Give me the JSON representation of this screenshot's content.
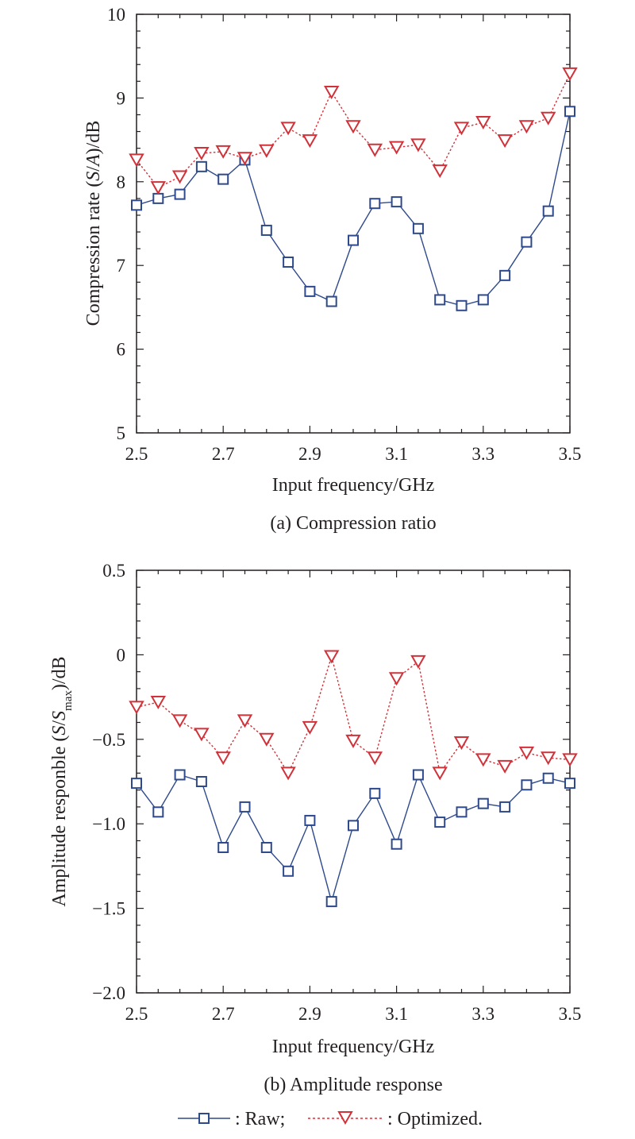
{
  "figure": {
    "legend": {
      "raw_label": ": Raw;",
      "optimized_label": ": Optimized."
    }
  },
  "colors": {
    "raw": "#2e4a8c",
    "optimized": "#d0323a",
    "axis": "#231f20"
  },
  "chart_data": [
    {
      "type": "line",
      "caption": "(a) Compression ratio",
      "xlabel": "Input frequency/GHz",
      "ylabel": "Compression rate (S/A)/dB",
      "xlim": [
        2.5,
        3.5
      ],
      "ylim": [
        5,
        10
      ],
      "xticks": [
        "2.5",
        "2.7",
        "2.9",
        "3.1",
        "3.3",
        "3.5"
      ],
      "yticks": [
        "5",
        "6",
        "7",
        "8",
        "9",
        "10"
      ],
      "grid": false,
      "x": [
        2.5,
        2.55,
        2.6,
        2.65,
        2.7,
        2.75,
        2.8,
        2.85,
        2.9,
        2.95,
        3.0,
        3.05,
        3.1,
        3.15,
        3.2,
        3.25,
        3.3,
        3.35,
        3.4,
        3.45,
        3.5
      ],
      "series": [
        {
          "name": "Raw",
          "marker": "square",
          "values": [
            7.72,
            7.8,
            7.85,
            8.18,
            8.03,
            8.26,
            7.42,
            7.04,
            6.69,
            6.57,
            7.3,
            7.74,
            7.76,
            7.44,
            6.59,
            6.52,
            6.59,
            6.88,
            7.28,
            7.65,
            8.84
          ]
        },
        {
          "name": "Optimized",
          "marker": "triangle-down",
          "values": [
            8.26,
            7.93,
            8.06,
            8.34,
            8.36,
            8.28,
            8.37,
            8.64,
            8.49,
            9.07,
            8.66,
            8.38,
            8.41,
            8.44,
            8.13,
            8.64,
            8.71,
            8.49,
            8.66,
            8.76,
            9.29
          ]
        }
      ]
    },
    {
      "type": "line",
      "caption": "(b) Amplitude response",
      "xlabel": "Input frequency/GHz",
      "ylabel_prefix": "Amplitude responble (",
      "ylabel_s1": "S",
      "ylabel_slash": "/",
      "ylabel_s2": "S",
      "ylabel_sub": "max",
      "ylabel_suffix": ")/dB",
      "xlim": [
        2.5,
        3.5
      ],
      "ylim": [
        -2.0,
        0.5
      ],
      "xticks": [
        "2.5",
        "2.7",
        "2.9",
        "3.1",
        "3.3",
        "3.5"
      ],
      "yticks": [
        "−2.0",
        "−1.5",
        "−1.0",
        "−0.5",
        "0",
        "0.5"
      ],
      "grid": false,
      "x": [
        2.5,
        2.55,
        2.6,
        2.65,
        2.7,
        2.75,
        2.8,
        2.85,
        2.9,
        2.95,
        3.0,
        3.05,
        3.1,
        3.15,
        3.2,
        3.25,
        3.3,
        3.35,
        3.4,
        3.45,
        3.5
      ],
      "series": [
        {
          "name": "Raw",
          "marker": "square",
          "values": [
            -0.76,
            -0.93,
            -0.71,
            -0.75,
            -1.14,
            -0.9,
            -1.14,
            -1.28,
            -0.98,
            -1.46,
            -1.01,
            -0.82,
            -1.12,
            -0.71,
            -0.99,
            -0.93,
            -0.88,
            -0.9,
            -0.77,
            -0.73,
            -0.76
          ]
        },
        {
          "name": "Optimized",
          "marker": "triangle-down",
          "values": [
            -0.31,
            -0.28,
            -0.39,
            -0.47,
            -0.61,
            -0.39,
            -0.5,
            -0.7,
            -0.43,
            -0.01,
            -0.51,
            -0.61,
            -0.14,
            -0.04,
            -0.7,
            -0.52,
            -0.62,
            -0.66,
            -0.58,
            -0.61,
            -0.62
          ]
        }
      ]
    }
  ]
}
